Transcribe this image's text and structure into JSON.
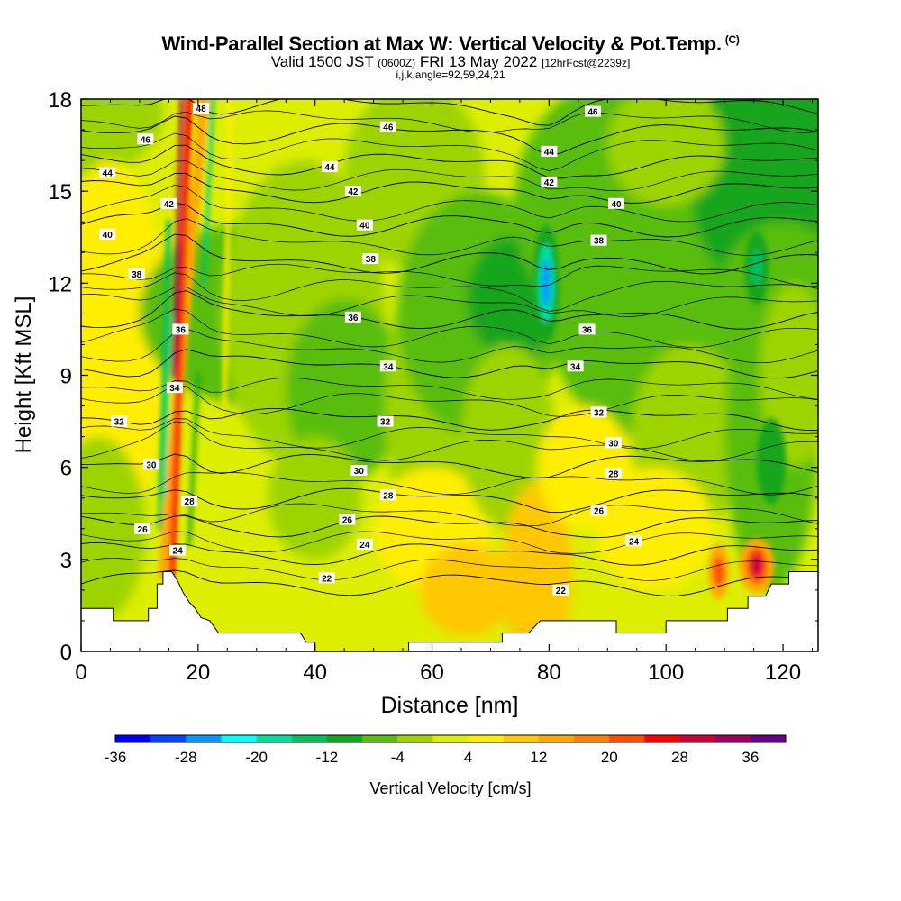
{
  "header": {
    "title": "Wind-Parallel Section at Max W: Vertical Velocity & Pot.Temp.",
    "title_suffix": "(C)",
    "valid_prefix": "Valid 1500 JST",
    "valid_zulu": "(0600Z)",
    "valid_date": "FRI 13 May 2022",
    "forecast": "[12hrFcst@2239z]",
    "indices": "i,j,k,angle=92,59,24,21"
  },
  "chart_data": {
    "type": "heatmap",
    "title": "Wind-Parallel Section at Max W: Vertical Velocity & Pot.Temp.",
    "xlabel": "Distance [nm]",
    "ylabel": "Height [Kft MSL]",
    "xlim": [
      0,
      126
    ],
    "ylim": [
      0,
      18
    ],
    "x_ticks": [
      0,
      20,
      40,
      60,
      80,
      100,
      120
    ],
    "y_ticks": [
      0,
      3,
      6,
      9,
      12,
      15,
      18
    ],
    "grid": false,
    "colorbar": {
      "label": "Vertical Velocity [cm/s]",
      "tick_labels": [
        -36,
        -28,
        -20,
        -12,
        -4,
        4,
        12,
        20,
        28,
        36
      ],
      "bounds": [
        -36,
        -32,
        -28,
        -24,
        -20,
        -16,
        -12,
        -8,
        -4,
        0,
        4,
        8,
        12,
        16,
        20,
        24,
        28,
        32,
        36,
        40
      ],
      "colors": [
        "#0000ff",
        "#0044ff",
        "#0099ff",
        "#00ffff",
        "#00e0a0",
        "#00c060",
        "#13a51a",
        "#59bd0f",
        "#9dd400",
        "#ddee00",
        "#ffee00",
        "#ffc800",
        "#ffaa00",
        "#ff7f00",
        "#ff4d00",
        "#ff0000",
        "#d0003c",
        "#a00064",
        "#6a0088"
      ],
      "placement": "bottom"
    },
    "contours": {
      "variable": "Potential Temperature (C)",
      "levels": [
        22,
        24,
        26,
        28,
        30,
        32,
        34,
        36,
        38,
        40,
        42,
        44,
        46,
        48
      ],
      "label_positions": [
        {
          "level": 48,
          "x": 20.5,
          "y": 17.7
        },
        {
          "level": 46,
          "x": 11,
          "y": 16.7
        },
        {
          "level": 46,
          "x": 52.5,
          "y": 17.1
        },
        {
          "level": 46,
          "x": 87.5,
          "y": 17.6
        },
        {
          "level": 44,
          "x": 4.5,
          "y": 15.6
        },
        {
          "level": 44,
          "x": 42.5,
          "y": 15.8
        },
        {
          "level": 44,
          "x": 80,
          "y": 16.3
        },
        {
          "level": 42,
          "x": 15,
          "y": 14.6
        },
        {
          "level": 42,
          "x": 46.5,
          "y": 15.0
        },
        {
          "level": 42,
          "x": 80,
          "y": 15.3
        },
        {
          "level": 40,
          "x": 4.5,
          "y": 13.6
        },
        {
          "level": 40,
          "x": 48.5,
          "y": 13.9
        },
        {
          "level": 40,
          "x": 91.5,
          "y": 14.6
        },
        {
          "level": 38,
          "x": 9.5,
          "y": 12.3
        },
        {
          "level": 38,
          "x": 49.5,
          "y": 12.8
        },
        {
          "level": 38,
          "x": 88.5,
          "y": 13.4
        },
        {
          "level": 36,
          "x": 17,
          "y": 10.5
        },
        {
          "level": 36,
          "x": 46.5,
          "y": 10.9
        },
        {
          "level": 36,
          "x": 86.5,
          "y": 10.5
        },
        {
          "level": 34,
          "x": 16,
          "y": 8.6
        },
        {
          "level": 34,
          "x": 52.5,
          "y": 9.3
        },
        {
          "level": 34,
          "x": 84.5,
          "y": 9.3
        },
        {
          "level": 32,
          "x": 6.5,
          "y": 7.5
        },
        {
          "level": 32,
          "x": 52,
          "y": 7.5
        },
        {
          "level": 32,
          "x": 88.5,
          "y": 7.8
        },
        {
          "level": 30,
          "x": 12,
          "y": 6.1
        },
        {
          "level": 30,
          "x": 47.5,
          "y": 5.9
        },
        {
          "level": 30,
          "x": 91,
          "y": 6.8
        },
        {
          "level": 28,
          "x": 18.5,
          "y": 4.9
        },
        {
          "level": 28,
          "x": 52.5,
          "y": 5.1
        },
        {
          "level": 28,
          "x": 91,
          "y": 5.8
        },
        {
          "level": 26,
          "x": 10.5,
          "y": 4.0
        },
        {
          "level": 26,
          "x": 45.5,
          "y": 4.3
        },
        {
          "level": 26,
          "x": 88.5,
          "y": 4.6
        },
        {
          "level": 24,
          "x": 16.5,
          "y": 3.3
        },
        {
          "level": 24,
          "x": 48.5,
          "y": 3.5
        },
        {
          "level": 24,
          "x": 94.5,
          "y": 3.6
        },
        {
          "level": 22,
          "x": 42,
          "y": 2.4
        },
        {
          "level": 22,
          "x": 82,
          "y": 2.0
        }
      ]
    },
    "terrain_kft": [
      [
        0,
        1.4
      ],
      [
        5.5,
        1.4
      ],
      [
        5.5,
        1.0
      ],
      [
        11.5,
        1.0
      ],
      [
        11.5,
        1.4
      ],
      [
        13,
        1.4
      ],
      [
        13,
        2.2
      ],
      [
        14,
        2.2
      ],
      [
        14,
        2.6
      ],
      [
        15.5,
        2.6
      ],
      [
        16.5,
        2.3
      ],
      [
        17.5,
        1.9
      ],
      [
        18.5,
        1.6
      ],
      [
        19.5,
        1.4
      ],
      [
        20.5,
        1.1
      ],
      [
        22,
        1.0
      ],
      [
        23.5,
        0.6
      ],
      [
        37.5,
        0.6
      ],
      [
        38.5,
        0.3
      ],
      [
        40,
        0.3
      ],
      [
        40,
        0.0
      ],
      [
        56,
        0.0
      ],
      [
        56,
        0.3
      ],
      [
        72,
        0.3
      ],
      [
        72,
        0.6
      ],
      [
        76.5,
        0.6
      ],
      [
        78.5,
        1.0
      ],
      [
        91.5,
        1.0
      ],
      [
        91.5,
        0.6
      ],
      [
        100,
        0.6
      ],
      [
        100,
        1.0
      ],
      [
        110.5,
        1.0
      ],
      [
        110.5,
        1.4
      ],
      [
        114,
        1.4
      ],
      [
        114,
        1.8
      ],
      [
        117,
        1.8
      ],
      [
        118,
        2.2
      ],
      [
        121,
        2.2
      ],
      [
        121,
        2.6
      ],
      [
        126,
        2.6
      ]
    ],
    "features": [
      {
        "x": 16.5,
        "y_range": [
          2.5,
          18
        ],
        "w_max_cm_s": 30
      },
      {
        "x": 14.5,
        "y_range": [
          3,
          13
        ],
        "w_min_cm_s": -20
      },
      {
        "x": 22,
        "y_range": [
          12,
          18
        ],
        "w_min_cm_s": -20
      },
      {
        "x": 79.5,
        "y": 12.0,
        "w_min_cm_s": -26
      },
      {
        "x": 115.5,
        "y": 2.8,
        "w_max_cm_s": 28
      },
      {
        "x": 109,
        "y": 2.6,
        "w_max_cm_s": 20
      },
      {
        "x": 115.5,
        "y": 12.5,
        "w_min_cm_s": -16
      }
    ]
  }
}
